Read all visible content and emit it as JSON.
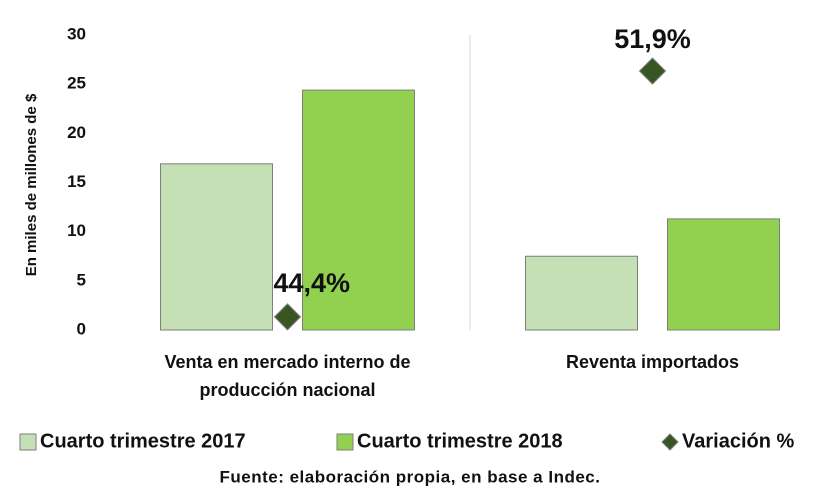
{
  "chart_data": {
    "type": "bar",
    "y_label": "En miles de millones de $",
    "categories": [
      "Venta en mercado interno de producción nacional",
      "Reventa importados"
    ],
    "series": [
      {
        "name": "Cuarto trimestre 2017",
        "color": "#c5e0b4",
        "values": [
          16.9,
          7.5
        ]
      },
      {
        "name": "Cuarto trimestre 2018",
        "color": "#92d050",
        "values": [
          24.4,
          11.3
        ]
      },
      {
        "name": "Variación %",
        "type": "scatter",
        "axis": "y2",
        "color": "#375623",
        "values": [
          44.4,
          51.9
        ],
        "value_labels": [
          "44,4%",
          "51,9%"
        ],
        "label_colors": [
          "#111111",
          "#b01010"
        ]
      }
    ],
    "ylim": [
      0,
      30
    ],
    "yticks": [
      0,
      5,
      10,
      15,
      20,
      25,
      30
    ],
    "y2lim": [
      44,
      53
    ],
    "source": "Fuente: elaboración propia, en base a Indec."
  }
}
